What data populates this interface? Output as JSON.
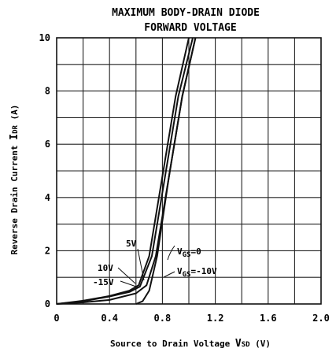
{
  "chart_data": {
    "type": "line",
    "title_line1": "MAXIMUM BODY-DRAIN DIODE",
    "title_line2": "FORWARD VOLTAGE",
    "xlabel_prefix": "Source to Drain Voltage ",
    "xlabel_sym": "V",
    "xlabel_sub": "SD",
    "xlabel_unit": " (V)",
    "ylabel_prefix": "Reverse Drain Current ",
    "ylabel_sym": "I",
    "ylabel_sub": "DR",
    "ylabel_unit": " (A)",
    "xlim": [
      0,
      2.0
    ],
    "ylim": [
      0,
      10
    ],
    "x_ticks": [
      "0",
      "0.4",
      "0.8",
      "1.2",
      "1.6",
      "2.0"
    ],
    "y_ticks": [
      "0",
      "2",
      "4",
      "6",
      "8",
      "10"
    ],
    "grid": true,
    "series": [
      {
        "x": [
          0,
          0.2,
          0.4,
          0.55,
          0.62,
          0.7,
          0.8,
          0.9,
          1.0
        ],
        "y": [
          0,
          0.12,
          0.3,
          0.5,
          0.7,
          1.8,
          4.8,
          7.8,
          10
        ]
      },
      {
        "x": [
          0,
          0.2,
          0.4,
          0.55,
          0.63,
          0.72,
          0.82,
          0.92,
          1.03
        ],
        "y": [
          0,
          0.1,
          0.28,
          0.45,
          0.65,
          1.8,
          4.8,
          7.8,
          10
        ]
      },
      {
        "x": [
          0,
          0.2,
          0.4,
          0.6,
          0.68,
          0.75,
          0.85,
          0.95,
          1.05
        ],
        "y": [
          0,
          0.06,
          0.15,
          0.4,
          0.7,
          1.8,
          4.8,
          7.8,
          10
        ]
      },
      {
        "x": [
          0.6,
          0.65,
          0.7,
          0.76,
          0.85,
          0.95,
          1.05
        ],
        "y": [
          0,
          0.1,
          0.5,
          1.8,
          4.8,
          7.8,
          10
        ]
      }
    ],
    "annotations": {
      "a5v": "5V",
      "a10v": "10V",
      "a15v": "-15V",
      "vgs0_sym": "V",
      "vgs0_sub": "GS",
      "vgs0_val": "=0",
      "vgsm10_sym": "V",
      "vgsm10_sub": "GS",
      "vgsm10_val": "=-10V"
    }
  }
}
